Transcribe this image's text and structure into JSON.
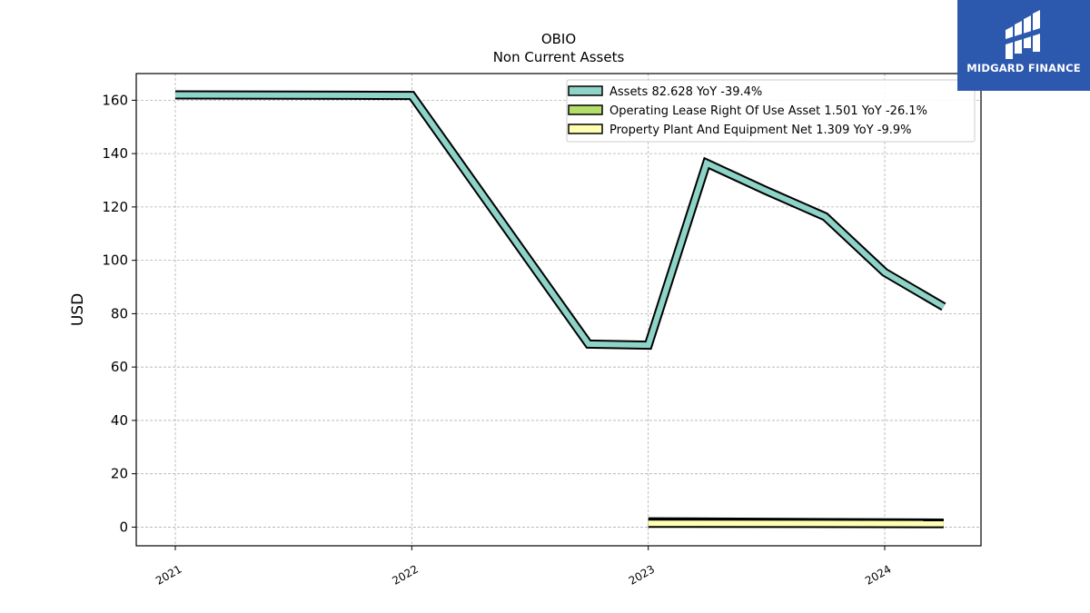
{
  "chart_data": {
    "type": "line",
    "title": "OBIO",
    "subtitle": "Non Current  Assets",
    "ylabel": "USD",
    "xlabel": "",
    "x_ticks": [
      "2021",
      "2022",
      "2023",
      "2024"
    ],
    "ylim": [
      -7,
      170
    ],
    "y_ticks": [
      0,
      20,
      40,
      60,
      80,
      100,
      120,
      140,
      160
    ],
    "grid": true,
    "legend_position": "top-right",
    "series": [
      {
        "name": "Assets  82.628 YoY -39.4%",
        "color": "#8dd3c7",
        "points": [
          {
            "x": "2021-01-01",
            "y": 162
          },
          {
            "x": "2022-01-01",
            "y": 161.8
          },
          {
            "x": "2022-10-01",
            "y": 68.6
          },
          {
            "x": "2023-01-01",
            "y": 68.2
          },
          {
            "x": "2023-04-01",
            "y": 136.4
          },
          {
            "x": "2023-07-01",
            "y": 126.2
          },
          {
            "x": "2023-10-01",
            "y": 116.4
          },
          {
            "x": "2024-01-01",
            "y": 95.5
          },
          {
            "x": "2024-04-01",
            "y": 82.6
          }
        ]
      },
      {
        "name": "Operating Lease Right Of Use Asset  1.501 YoY -26.1%",
        "color": "#b3de69",
        "points": [
          {
            "x": "2023-01-01",
            "y": 2.0
          },
          {
            "x": "2024-04-01",
            "y": 1.5
          }
        ]
      },
      {
        "name": "Property Plant And Equipment Net  1.309 YoY -9.9%",
        "color": "#ffffb3",
        "points": [
          {
            "x": "2023-01-01",
            "y": 1.45
          },
          {
            "x": "2024-04-01",
            "y": 1.31
          }
        ]
      }
    ]
  },
  "logo": {
    "text": "MIDGARD FINANCE",
    "background": "#2c59ad"
  }
}
